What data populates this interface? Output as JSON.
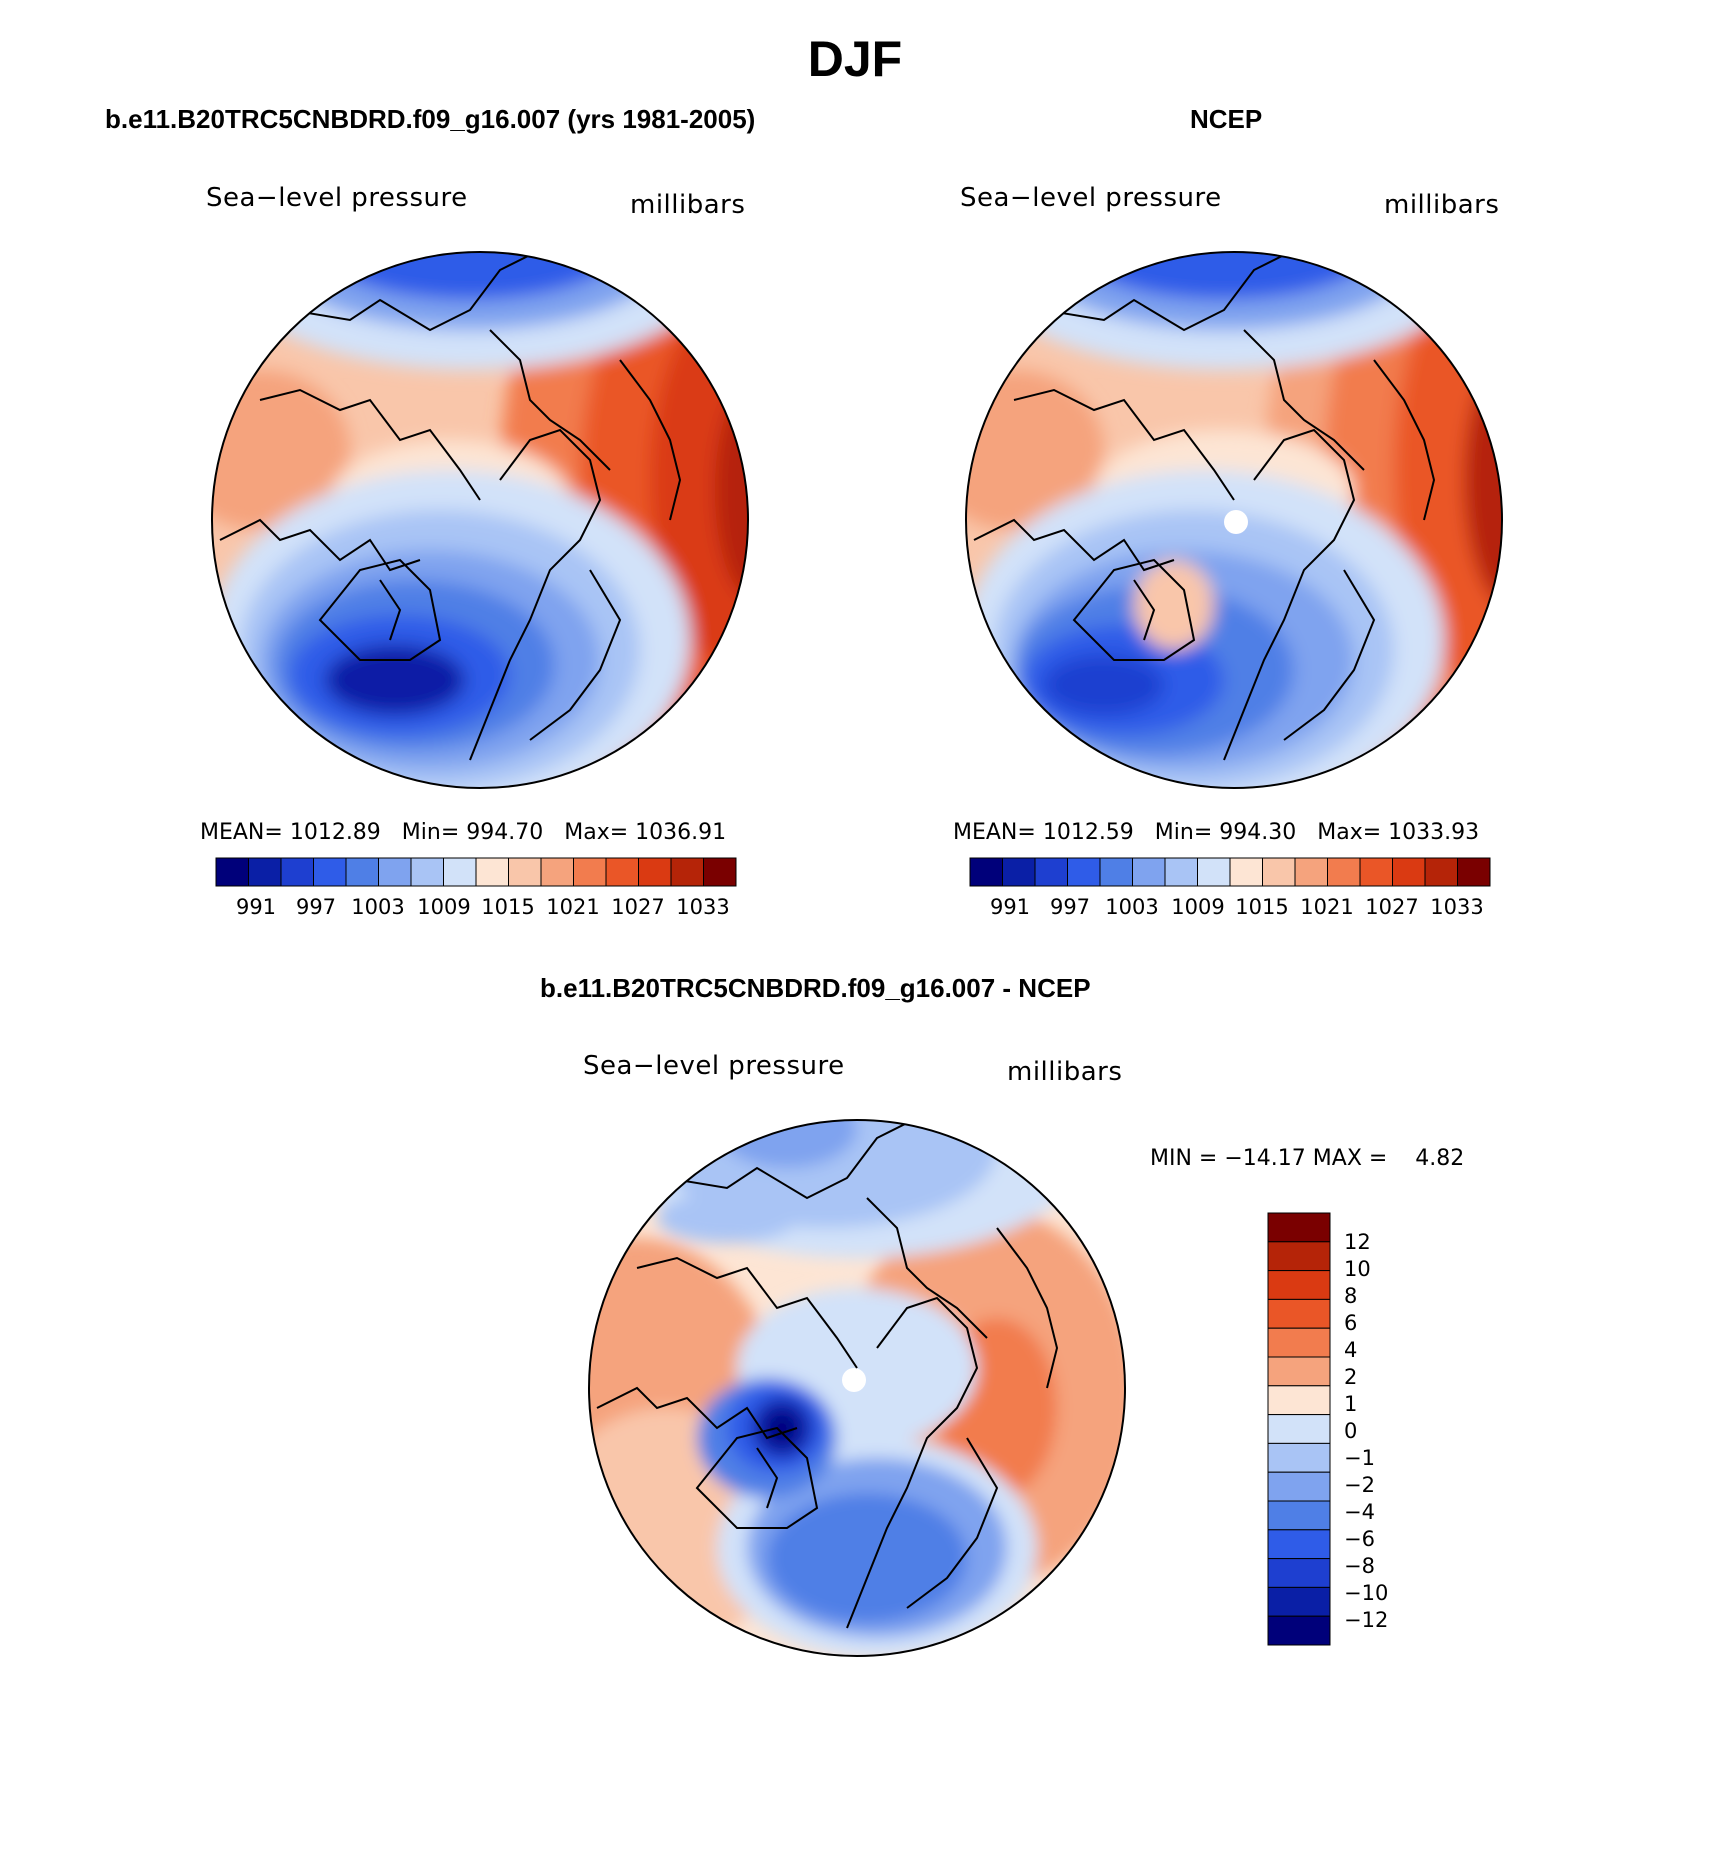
{
  "page_title": "DJF",
  "panels": [
    {
      "header": "b.e11.B20TRC5CNBDRD.f09_g16.007 (yrs 1981-2005)",
      "variable": "Sea−level pressure",
      "units": "millibars",
      "stats": {
        "mean_label": "MEAN=",
        "mean": "1012.89",
        "min_label": "Min=",
        "min": "994.70",
        "max_label": "Max=",
        "max": "1036.91"
      },
      "colorbar_labels": [
        "991",
        "997",
        "1003",
        "1009",
        "1015",
        "1021",
        "1027",
        "1033"
      ]
    },
    {
      "header": "NCEP",
      "variable": "Sea−level pressure",
      "units": "millibars",
      "stats": {
        "mean_label": "MEAN=",
        "mean": "1012.59",
        "min_label": "Min=",
        "min": "994.30",
        "max_label": "Max=",
        "max": "1033.93"
      },
      "colorbar_labels": [
        "991",
        "997",
        "1003",
        "1009",
        "1015",
        "1021",
        "1027",
        "1033"
      ]
    },
    {
      "header": "b.e11.B20TRC5CNBDRD.f09_g16.007 - NCEP",
      "variable": "Sea−level pressure",
      "units": "millibars",
      "stats": {
        "min_label": "MIN =",
        "min": "−14.17",
        "max_label": "MAX =",
        "max": "4.82"
      },
      "colorbar_labels": [
        "12",
        "10",
        "8",
        "6",
        "4",
        "2",
        "1",
        "0",
        "−1",
        "−2",
        "−4",
        "−6",
        "−8",
        "−10",
        "−12"
      ]
    }
  ],
  "colors": {
    "abs_palette": [
      "#00007a",
      "#0a1fa6",
      "#1e3fd0",
      "#2f5ce8",
      "#4f7fe6",
      "#7fa3ef",
      "#a9c4f5",
      "#d2e2f9",
      "#fde5d4",
      "#f9c6aa",
      "#f5a37d",
      "#f27c4e",
      "#ea5627",
      "#da3a12",
      "#b52408",
      "#7a0000"
    ],
    "diff_palette": [
      "#7a0000",
      "#b52408",
      "#da3a12",
      "#ea5627",
      "#f27c4e",
      "#f5a37d",
      "#fde5d4",
      "#d2e2f9",
      "#a9c4f5",
      "#7fa3ef",
      "#4f7fe6",
      "#2f5ce8",
      "#1e3fd0",
      "#0a1fa6",
      "#00007a"
    ]
  }
}
